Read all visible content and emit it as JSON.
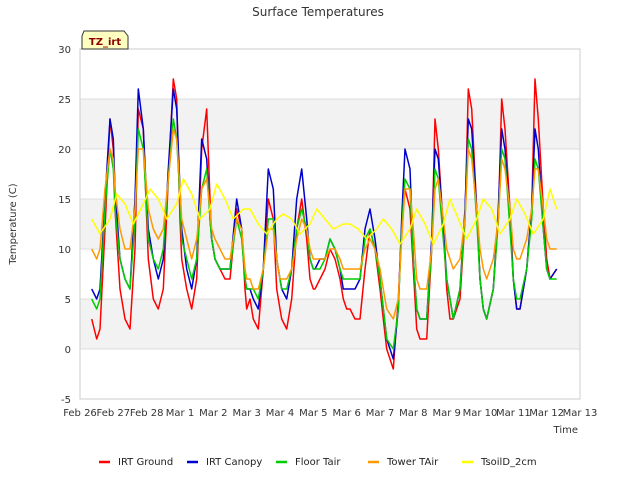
{
  "chart_data": {
    "type": "line",
    "title": "Surface Temperatures",
    "xlabel": "Time",
    "ylabel": "Temperature (C)",
    "site_badge": "TZ_irt",
    "ylim": [
      -5,
      30
    ],
    "yticks": [
      -5,
      0,
      5,
      10,
      15,
      20,
      25,
      30
    ],
    "xlim": [
      0,
      15
    ],
    "x_unit": "days since Feb 26",
    "x_ticks": [
      {
        "value": 0,
        "label": "Feb 26"
      },
      {
        "value": 1,
        "label": "Feb 27"
      },
      {
        "value": 2,
        "label": "Feb 28"
      },
      {
        "value": 3,
        "label": "Mar 1"
      },
      {
        "value": 4,
        "label": "Mar 2"
      },
      {
        "value": 5,
        "label": "Mar 3"
      },
      {
        "value": 6,
        "label": "Mar 4"
      },
      {
        "value": 7,
        "label": "Mar 5"
      },
      {
        "value": 8,
        "label": "Mar 6"
      },
      {
        "value": 9,
        "label": "Mar 7"
      },
      {
        "value": 10,
        "label": "Mar 8"
      },
      {
        "value": 11,
        "label": "Mar 9"
      },
      {
        "value": 12,
        "label": "Mar 10"
      },
      {
        "value": 13,
        "label": "Mar 11"
      },
      {
        "value": 14,
        "label": "Mar 12"
      },
      {
        "value": 15,
        "label": "Mar 13"
      }
    ],
    "series": [
      {
        "name": "IRT Ground",
        "color": "#ff0000",
        "x": [
          0.35,
          0.5,
          0.6,
          0.75,
          0.9,
          1.0,
          1.05,
          1.2,
          1.35,
          1.5,
          1.65,
          1.75,
          1.9,
          2.0,
          2.05,
          2.2,
          2.35,
          2.5,
          2.65,
          2.8,
          2.9,
          3.0,
          3.05,
          3.2,
          3.35,
          3.5,
          3.65,
          3.8,
          3.9,
          3.95,
          4.05,
          4.2,
          4.35,
          4.5,
          4.7,
          4.85,
          4.95,
          5.0,
          5.1,
          5.2,
          5.35,
          5.5,
          5.65,
          5.8,
          5.9,
          6.0,
          6.05,
          6.2,
          6.35,
          6.5,
          6.65,
          6.8,
          6.9,
          7.0,
          7.05,
          7.2,
          7.35,
          7.5,
          7.65,
          7.8,
          7.9,
          8.0,
          8.1,
          8.25,
          8.4,
          8.55,
          8.7,
          8.85,
          9.0,
          9.1,
          9.2,
          9.4,
          9.55,
          9.65,
          9.75,
          9.9,
          10.0,
          10.1,
          10.2,
          10.4,
          10.55,
          10.65,
          10.75,
          10.9,
          11.0,
          11.1,
          11.2,
          11.4,
          11.55,
          11.65,
          11.75,
          11.9,
          12.0,
          12.1,
          12.2,
          12.4,
          12.55,
          12.65,
          12.75,
          12.9,
          13.0,
          13.1,
          13.2,
          13.4,
          13.55,
          13.65,
          13.75,
          13.9,
          14.0,
          14.1,
          14.3
        ],
        "y": [
          3,
          1,
          2,
          12,
          23,
          20,
          14,
          6,
          3,
          2,
          10,
          24,
          22,
          13,
          9,
          5,
          4,
          6,
          17,
          27,
          25,
          13,
          9,
          6,
          4,
          7,
          20,
          24,
          15,
          11,
          9,
          8,
          7,
          7,
          14,
          12,
          6,
          4,
          5,
          3,
          2,
          8,
          15,
          13,
          6,
          4,
          3,
          2,
          5,
          12,
          15,
          11,
          7,
          6,
          6,
          7,
          8,
          10,
          9,
          7,
          5,
          4,
          4,
          3,
          3,
          8,
          12,
          10,
          6,
          3,
          0,
          -2,
          5,
          12,
          16,
          14,
          8,
          2,
          1,
          1,
          10,
          23,
          20,
          12,
          6,
          3,
          3,
          5,
          13,
          26,
          24,
          14,
          7,
          4,
          3,
          6,
          13,
          25,
          22,
          14,
          7,
          4,
          4,
          8,
          14,
          27,
          23,
          14,
          9,
          7,
          8
        ]
      },
      {
        "name": "IRT Canopy",
        "color": "#0000cc",
        "x": [
          0.35,
          0.5,
          0.6,
          0.75,
          0.9,
          1.0,
          1.05,
          1.2,
          1.35,
          1.5,
          1.65,
          1.75,
          1.9,
          2.0,
          2.05,
          2.2,
          2.35,
          2.5,
          2.65,
          2.8,
          2.9,
          3.0,
          3.05,
          3.2,
          3.35,
          3.5,
          3.65,
          3.8,
          3.9,
          3.95,
          4.05,
          4.2,
          4.35,
          4.5,
          4.7,
          4.85,
          4.95,
          5.0,
          5.1,
          5.2,
          5.35,
          5.5,
          5.65,
          5.8,
          5.9,
          6.0,
          6.05,
          6.2,
          6.35,
          6.5,
          6.65,
          6.8,
          6.9,
          7.0,
          7.05,
          7.2,
          7.35,
          7.5,
          7.65,
          7.8,
          7.9,
          8.0,
          8.1,
          8.25,
          8.4,
          8.55,
          8.7,
          8.85,
          9.0,
          9.1,
          9.2,
          9.4,
          9.55,
          9.65,
          9.75,
          9.9,
          10.0,
          10.1,
          10.2,
          10.4,
          10.55,
          10.65,
          10.75,
          10.9,
          11.0,
          11.1,
          11.2,
          11.4,
          11.55,
          11.65,
          11.75,
          11.9,
          12.0,
          12.1,
          12.2,
          12.4,
          12.55,
          12.65,
          12.75,
          12.9,
          13.0,
          13.1,
          13.2,
          13.4,
          13.55,
          13.65,
          13.75,
          13.9,
          14.0,
          14.1,
          14.3
        ],
        "y": [
          6,
          5,
          6,
          15,
          23,
          21,
          16,
          9,
          7,
          6,
          15,
          26,
          22,
          15,
          12,
          9,
          7,
          9,
          18,
          26,
          24,
          16,
          12,
          8,
          6,
          9,
          21,
          19,
          13,
          11,
          9,
          8,
          8,
          8,
          15,
          12,
          7,
          6,
          6,
          5,
          4,
          8,
          18,
          16,
          9,
          7,
          6,
          5,
          8,
          15,
          18,
          13,
          9,
          8,
          8,
          9,
          9,
          11,
          10,
          8,
          6,
          6,
          6,
          6,
          7,
          12,
          14,
          11,
          7,
          4,
          1,
          -1,
          4,
          13,
          20,
          18,
          9,
          4,
          3,
          3,
          11,
          20,
          19,
          12,
          7,
          5,
          3,
          6,
          14,
          23,
          22,
          14,
          7,
          4,
          3,
          6,
          14,
          22,
          20,
          13,
          7,
          4,
          4,
          8,
          14,
          22,
          20,
          12,
          8,
          7,
          8
        ]
      },
      {
        "name": "Floor Tair",
        "color": "#00cc00",
        "x": [
          0.35,
          0.5,
          0.6,
          0.75,
          0.9,
          1.0,
          1.05,
          1.2,
          1.35,
          1.5,
          1.65,
          1.75,
          1.9,
          2.0,
          2.05,
          2.2,
          2.35,
          2.5,
          2.65,
          2.8,
          2.9,
          3.0,
          3.05,
          3.2,
          3.35,
          3.5,
          3.65,
          3.8,
          3.9,
          3.95,
          4.05,
          4.2,
          4.35,
          4.5,
          4.7,
          4.85,
          4.95,
          5.0,
          5.1,
          5.2,
          5.35,
          5.5,
          5.65,
          5.8,
          5.9,
          6.0,
          6.05,
          6.2,
          6.35,
          6.5,
          6.65,
          6.8,
          6.9,
          7.0,
          7.05,
          7.2,
          7.35,
          7.5,
          7.65,
          7.8,
          7.9,
          8.0,
          8.1,
          8.25,
          8.4,
          8.55,
          8.7,
          8.85,
          9.0,
          9.1,
          9.2,
          9.4,
          9.55,
          9.65,
          9.75,
          9.9,
          10.0,
          10.1,
          10.2,
          10.4,
          10.55,
          10.65,
          10.75,
          10.9,
          11.0,
          11.1,
          11.2,
          11.4,
          11.55,
          11.65,
          11.75,
          11.9,
          12.0,
          12.1,
          12.2,
          12.4,
          12.55,
          12.65,
          12.75,
          12.9,
          13.0,
          13.1,
          13.2,
          13.4,
          13.55,
          13.65,
          13.75,
          13.9,
          14.0,
          14.1,
          14.3
        ],
        "y": [
          5,
          4,
          5,
          14,
          20,
          18,
          14,
          9,
          7,
          6,
          13,
          22,
          20,
          14,
          11,
          9,
          8,
          10,
          17,
          23,
          21,
          15,
          11,
          9,
          7,
          9,
          16,
          18,
          13,
          11,
          9,
          8,
          8,
          8,
          13,
          11,
          7,
          6,
          6,
          6,
          5,
          8,
          13,
          13,
          9,
          7,
          6,
          6,
          8,
          12,
          14,
          12,
          9,
          8,
          8,
          8,
          9,
          11,
          10,
          8,
          7,
          7,
          7,
          7,
          7,
          11,
          12,
          10,
          7,
          4,
          1,
          0,
          4,
          12,
          17,
          16,
          9,
          4,
          3,
          3,
          10,
          18,
          17,
          11,
          7,
          5,
          3,
          6,
          13,
          21,
          20,
          13,
          7,
          4,
          3,
          6,
          13,
          20,
          19,
          12,
          7,
          5,
          5,
          8,
          13,
          19,
          18,
          12,
          8,
          7,
          7
        ]
      },
      {
        "name": "Tower TAir",
        "color": "#ff9900",
        "x": [
          0.35,
          0.5,
          0.6,
          0.75,
          0.9,
          1.0,
          1.05,
          1.2,
          1.35,
          1.5,
          1.65,
          1.75,
          1.9,
          2.0,
          2.05,
          2.2,
          2.35,
          2.5,
          2.65,
          2.8,
          2.9,
          3.0,
          3.05,
          3.2,
          3.35,
          3.5,
          3.65,
          3.8,
          3.9,
          3.95,
          4.05,
          4.2,
          4.35,
          4.5,
          4.7,
          4.85,
          4.95,
          5.0,
          5.1,
          5.2,
          5.35,
          5.5,
          5.65,
          5.8,
          5.9,
          6.0,
          6.05,
          6.2,
          6.35,
          6.5,
          6.65,
          6.8,
          6.9,
          7.0,
          7.05,
          7.2,
          7.35,
          7.5,
          7.65,
          7.8,
          7.9,
          8.0,
          8.1,
          8.25,
          8.4,
          8.55,
          8.7,
          8.85,
          9.0,
          9.1,
          9.2,
          9.4,
          9.55,
          9.65,
          9.75,
          9.9,
          10.0,
          10.1,
          10.2,
          10.4,
          10.55,
          10.65,
          10.75,
          10.9,
          11.0,
          11.1,
          11.2,
          11.4,
          11.55,
          11.65,
          11.75,
          11.9,
          12.0,
          12.1,
          12.2,
          12.4,
          12.55,
          12.65,
          12.75,
          12.9,
          13.0,
          13.1,
          13.2,
          13.4,
          13.55,
          13.65,
          13.75,
          13.9,
          14.0,
          14.1,
          14.3
        ],
        "y": [
          10,
          9,
          10,
          16,
          20,
          19,
          16,
          12,
          10,
          10,
          14,
          20,
          20,
          16,
          14,
          12,
          11,
          12,
          17,
          22,
          21,
          16,
          13,
          11,
          9,
          11,
          16,
          17,
          14,
          12,
          11,
          10,
          9,
          9,
          13,
          12,
          8,
          7,
          7,
          6,
          6,
          8,
          12,
          12,
          9,
          7,
          7,
          7,
          8,
          11,
          13,
          12,
          10,
          9,
          9,
          9,
          9,
          10,
          10,
          9,
          8,
          8,
          8,
          8,
          8,
          10,
          11,
          10,
          8,
          6,
          4,
          3,
          5,
          11,
          16,
          16,
          12,
          7,
          6,
          6,
          10,
          16,
          17,
          13,
          10,
          9,
          8,
          9,
          13,
          20,
          19,
          14,
          10,
          8,
          7,
          9,
          13,
          19,
          18,
          14,
          10,
          9,
          9,
          11,
          14,
          18,
          18,
          14,
          11,
          10,
          10
        ]
      },
      {
        "name": "TsoilD_2cm",
        "color": "#ffff00",
        "x": [
          0.35,
          0.6,
          0.9,
          1.1,
          1.35,
          1.6,
          1.9,
          2.1,
          2.35,
          2.6,
          2.9,
          3.1,
          3.35,
          3.6,
          3.9,
          4.1,
          4.35,
          4.6,
          4.9,
          5.1,
          5.35,
          5.6,
          5.9,
          6.1,
          6.35,
          6.6,
          6.9,
          7.1,
          7.35,
          7.6,
          7.9,
          8.1,
          8.35,
          8.6,
          8.9,
          9.1,
          9.35,
          9.6,
          9.9,
          10.1,
          10.35,
          10.6,
          10.9,
          11.1,
          11.35,
          11.6,
          11.9,
          12.1,
          12.35,
          12.6,
          12.9,
          13.1,
          13.35,
          13.6,
          13.9,
          14.1,
          14.3
        ],
        "y": [
          13,
          11.5,
          13,
          15.5,
          14.5,
          12.5,
          14.5,
          16,
          15,
          13,
          14.5,
          17,
          15.5,
          13,
          14,
          16.5,
          15,
          13,
          14,
          14,
          12.5,
          11.5,
          13,
          13.5,
          13,
          11.5,
          12.5,
          14,
          13,
          12,
          12.5,
          12.5,
          12,
          11,
          12,
          13,
          12,
          10.5,
          12,
          14,
          12.5,
          10.5,
          12.5,
          15,
          13,
          11,
          13,
          15,
          14,
          11.5,
          13,
          15,
          13.5,
          11.5,
          13,
          16,
          14
        ]
      }
    ]
  }
}
